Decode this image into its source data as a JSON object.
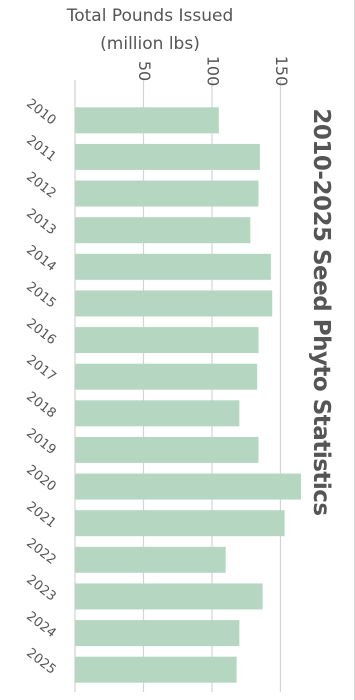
{
  "chart_data": {
    "type": "bar",
    "orientation": "horizontal",
    "title": "2010-2025 Seed Phyto Statistics",
    "xlabel": [
      "Total Pounds Issued",
      "(million lbs)"
    ],
    "ylabel": "",
    "xlim": [
      0,
      165
    ],
    "xticks": [
      50,
      100,
      150
    ],
    "categories": [
      "2010",
      "2011",
      "2012",
      "2013",
      "2014",
      "2015",
      "2016",
      "2017",
      "2018",
      "2019",
      "2020",
      "2021",
      "2022",
      "2023",
      "2024",
      "2025"
    ],
    "values": [
      105,
      135,
      134,
      128,
      143,
      144,
      134,
      133,
      120,
      134,
      165,
      153,
      110,
      137,
      120,
      118
    ],
    "grid": "vertical",
    "bar_color": "#b5d7c2",
    "legend": "none"
  }
}
